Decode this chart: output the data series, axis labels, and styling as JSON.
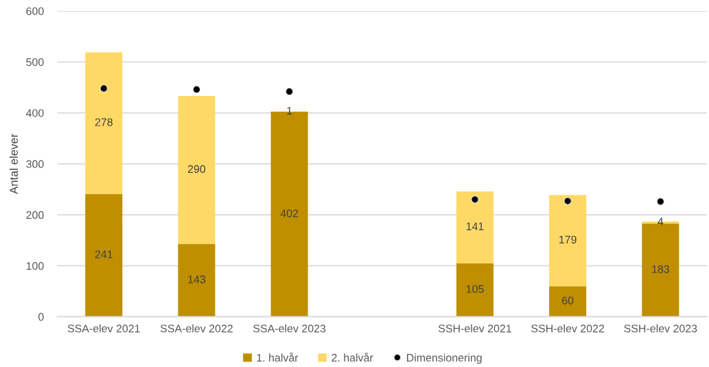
{
  "chart_data": {
    "type": "bar",
    "stacked": true,
    "ylabel": "Antal elever",
    "categories": [
      "SSA-elev 2021",
      "SSA-elev 2022",
      "SSA-elev 2023",
      null,
      "SSH-elev 2021",
      "SSH-elev 2022",
      "SSH-elev 2023"
    ],
    "series": [
      {
        "name": "1. halvår",
        "color": "#bf8f00",
        "values": [
          241,
          143,
          402,
          null,
          105,
          60,
          183
        ],
        "value_labels": [
          "241",
          "143",
          "402",
          null,
          "105",
          "60",
          "183"
        ]
      },
      {
        "name": "2. halvår",
        "color": "#ffd966",
        "values": [
          278,
          290,
          1,
          null,
          141,
          179,
          4
        ],
        "value_labels": [
          "278",
          "290",
          "1",
          null,
          "141",
          "179",
          "4"
        ]
      },
      {
        "name": "Dimensionering",
        "type": "scatter",
        "color": "#000000",
        "marker": "circle",
        "values": [
          448,
          446,
          442,
          null,
          230,
          227,
          226
        ]
      }
    ],
    "ylim": [
      0,
      600
    ],
    "yticks": [
      0,
      100,
      200,
      300,
      400,
      500,
      600
    ],
    "grid": "y",
    "legend": "bottom"
  }
}
